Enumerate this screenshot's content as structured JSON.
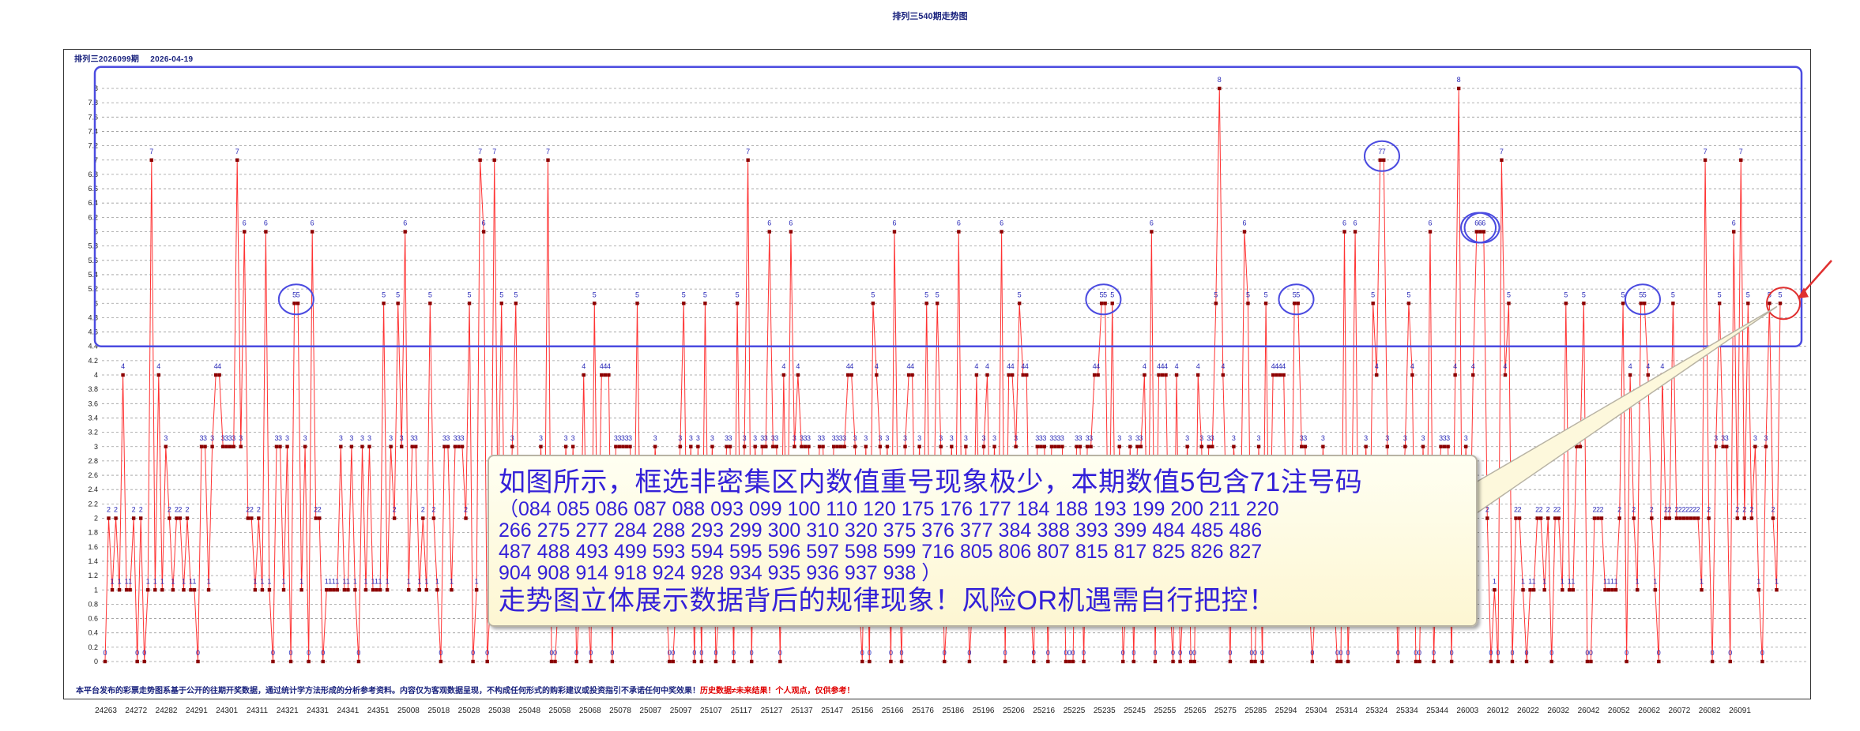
{
  "page": {
    "title": "排列三540期走势图",
    "issue_label": "排列三2026099期",
    "date_label": "2026-04-19"
  },
  "footer": {
    "note": "本平台发布的彩票走势图系基于公开的往期开奖数据，通过统计学方法形成的分析参考资料。内容仅为客观数据呈现，不构成任何形式的购彩建议或投资指引不承诺任何中奖效果！",
    "warning": "历史数据≠未来结果！个人观点，仅供参考！"
  },
  "callout": {
    "line1": "如图所示，框选非密集区内数值重号现象极少，本期数值5包含71注号码",
    "numbers_line1": "（084  085  086  087  088  093  099  100  110  120  175  176  177  184  188  193  199  200  211  220",
    "numbers_line2": "266  275  277  284  288  293  299  300  310  320  375  376  377  384  388  393  399  484  485  486",
    "numbers_line3": "487  488  493  499  593  594  595  596  597  598  599  716  805  806  807  815  817  825  826  827",
    "numbers_line4": "904  908  914  918  924  928  934  935  936  937  938 ）",
    "line2": "走势图立体展示数据背后的规律现象！风险OR机遇需自行把控！"
  },
  "colors": {
    "line": "#ff3333",
    "marker": "#8b0000",
    "label": "#2b2bb8",
    "highlight_box": "#4b4be0",
    "highlight_circle": "#4b4be0",
    "latest_circle": "#e03030",
    "pointer": "#e03030",
    "grid": "#9a9a9a"
  },
  "chart_data": {
    "type": "line",
    "title": "排列三540期走势图",
    "ylim": [
      0,
      8.2
    ],
    "y_ticks": [
      "0",
      "0.2",
      "0.4",
      "0.6",
      "0.8",
      "1",
      "1.2",
      "1.4",
      "1.6",
      "1.8",
      "2",
      "2.2",
      "2.4",
      "2.6",
      "2.8",
      "3",
      "3.2",
      "3.4",
      "3.6",
      "3.8",
      "4",
      "4.2",
      "4.4",
      "4.6",
      "4.8",
      "5",
      "5.2",
      "5.4",
      "5.6",
      "5.8",
      "6",
      "6.2",
      "6.4",
      "6.6",
      "6.8",
      "7",
      "7.2",
      "7.4",
      "7.6",
      "7.8",
      "8"
    ],
    "x_ticks": [
      "24263",
      "24272",
      "24282",
      "24291",
      "24301",
      "24311",
      "24321",
      "24331",
      "24341",
      "24351",
      "25008",
      "25018",
      "25028",
      "25038",
      "25048",
      "25058",
      "25068",
      "25078",
      "25087",
      "25097",
      "25107",
      "25117",
      "25127",
      "25137",
      "25147",
      "25156",
      "25166",
      "25176",
      "25186",
      "25196",
      "25206",
      "25216",
      "25225",
      "25235",
      "25245",
      "25255",
      "25265",
      "25275",
      "25285",
      "25294",
      "25304",
      "25314",
      "25324",
      "25334",
      "25344",
      "26003",
      "26012",
      "26022",
      "26032",
      "26042",
      "26052",
      "26062",
      "26072",
      "26082",
      "26091"
    ],
    "grid": true,
    "highlight_region": [
      4.4,
      8.3
    ],
    "series": [
      {
        "values": [
          0,
          2,
          1,
          2,
          1,
          4,
          1,
          1,
          2,
          0,
          2,
          0,
          1,
          7,
          1,
          4,
          1,
          3,
          2,
          1,
          2,
          2,
          1,
          2,
          1,
          1,
          0,
          3,
          3,
          1,
          3,
          4,
          4,
          3,
          3,
          3,
          3,
          7,
          3,
          6,
          2,
          2,
          1,
          2,
          1,
          6,
          1,
          0,
          3,
          3,
          1,
          3,
          0,
          5,
          5,
          1,
          3,
          0,
          6,
          2,
          2,
          0,
          1,
          1,
          1,
          1,
          3,
          1,
          1,
          3,
          1,
          0,
          3,
          1,
          3,
          1,
          1,
          1,
          5,
          1,
          3,
          2,
          5,
          3,
          6,
          1,
          3,
          3,
          1,
          2,
          1,
          5,
          2,
          1,
          0,
          3,
          3,
          1,
          3,
          3,
          3,
          2,
          5,
          0,
          1,
          7,
          6,
          0,
          1,
          7,
          2,
          5,
          1,
          1,
          3,
          5,
          1,
          1,
          1,
          1,
          1,
          1,
          3,
          1,
          7,
          0,
          0,
          1,
          1,
          3,
          1,
          3,
          0,
          1,
          4,
          1,
          0,
          5,
          1,
          4,
          4,
          4,
          0,
          3,
          3,
          3,
          3,
          3,
          1,
          5,
          1,
          1,
          1,
          1,
          3,
          2,
          1,
          1,
          0,
          0,
          1,
          3,
          5,
          1,
          3,
          0,
          3,
          0,
          5,
          1,
          3,
          0,
          1,
          1,
          3,
          3,
          0,
          5,
          1,
          3,
          7,
          0,
          3,
          1,
          3,
          3,
          6,
          3,
          3,
          0,
          4,
          1,
          6,
          3,
          4,
          3,
          3,
          3,
          1,
          1,
          3,
          3,
          1,
          1,
          3,
          3,
          3,
          3,
          4,
          4,
          3,
          1,
          0,
          3,
          0,
          5,
          4,
          3,
          1,
          3,
          0,
          6,
          2,
          0,
          3,
          4,
          4,
          1,
          3,
          1,
          5,
          1,
          2,
          5,
          3,
          0,
          1,
          3,
          1,
          6,
          1,
          3,
          0,
          1,
          4,
          1,
          3,
          4,
          1,
          3,
          1,
          6,
          0,
          4,
          4,
          3,
          5,
          4,
          4,
          1,
          0,
          3,
          3,
          3,
          0,
          3,
          3,
          3,
          3,
          0,
          0,
          0,
          3,
          3,
          0,
          3,
          3,
          4,
          4,
          5,
          5,
          1,
          5,
          1,
          3,
          0,
          1,
          3,
          0,
          3,
          3,
          4,
          1,
          6,
          0,
          4,
          4,
          4,
          1,
          0,
          4,
          0,
          1,
          3,
          0,
          0,
          4,
          3,
          1,
          3,
          3,
          5,
          8,
          4,
          2,
          0,
          3,
          2,
          2,
          6,
          5,
          0,
          0,
          3,
          0,
          5,
          1,
          4,
          4,
          4,
          4,
          1,
          1,
          5,
          5,
          3,
          3,
          1,
          0,
          1,
          1,
          3,
          1,
          1,
          1,
          0,
          0,
          6,
          0,
          2,
          6,
          1,
          1,
          3,
          1,
          5,
          4,
          7,
          7,
          3,
          1,
          2,
          0,
          2,
          3,
          5,
          4,
          0,
          0,
          3,
          1,
          6,
          0,
          2,
          3,
          3,
          3,
          0,
          4,
          8,
          1,
          3,
          1,
          4,
          6,
          6,
          6,
          2,
          0,
          1,
          0,
          7,
          4,
          5,
          0,
          2,
          2,
          1,
          0,
          1,
          1,
          2,
          2,
          1,
          2,
          0,
          2,
          2,
          1,
          5,
          1,
          1,
          3,
          3,
          5,
          0,
          0,
          2,
          2,
          2,
          1,
          1,
          1,
          1,
          2,
          5,
          0,
          4,
          2,
          1,
          5,
          5,
          4,
          2,
          1,
          0,
          4,
          2,
          2,
          5,
          2,
          2,
          2,
          2,
          2,
          2,
          2,
          1,
          7,
          2,
          0,
          3,
          5,
          3,
          3,
          0,
          6,
          2,
          7,
          2,
          5,
          2,
          3,
          1,
          0,
          3,
          5,
          2,
          1,
          5
        ]
      }
    ],
    "latest_value": 5,
    "latest_value_count": 71
  }
}
